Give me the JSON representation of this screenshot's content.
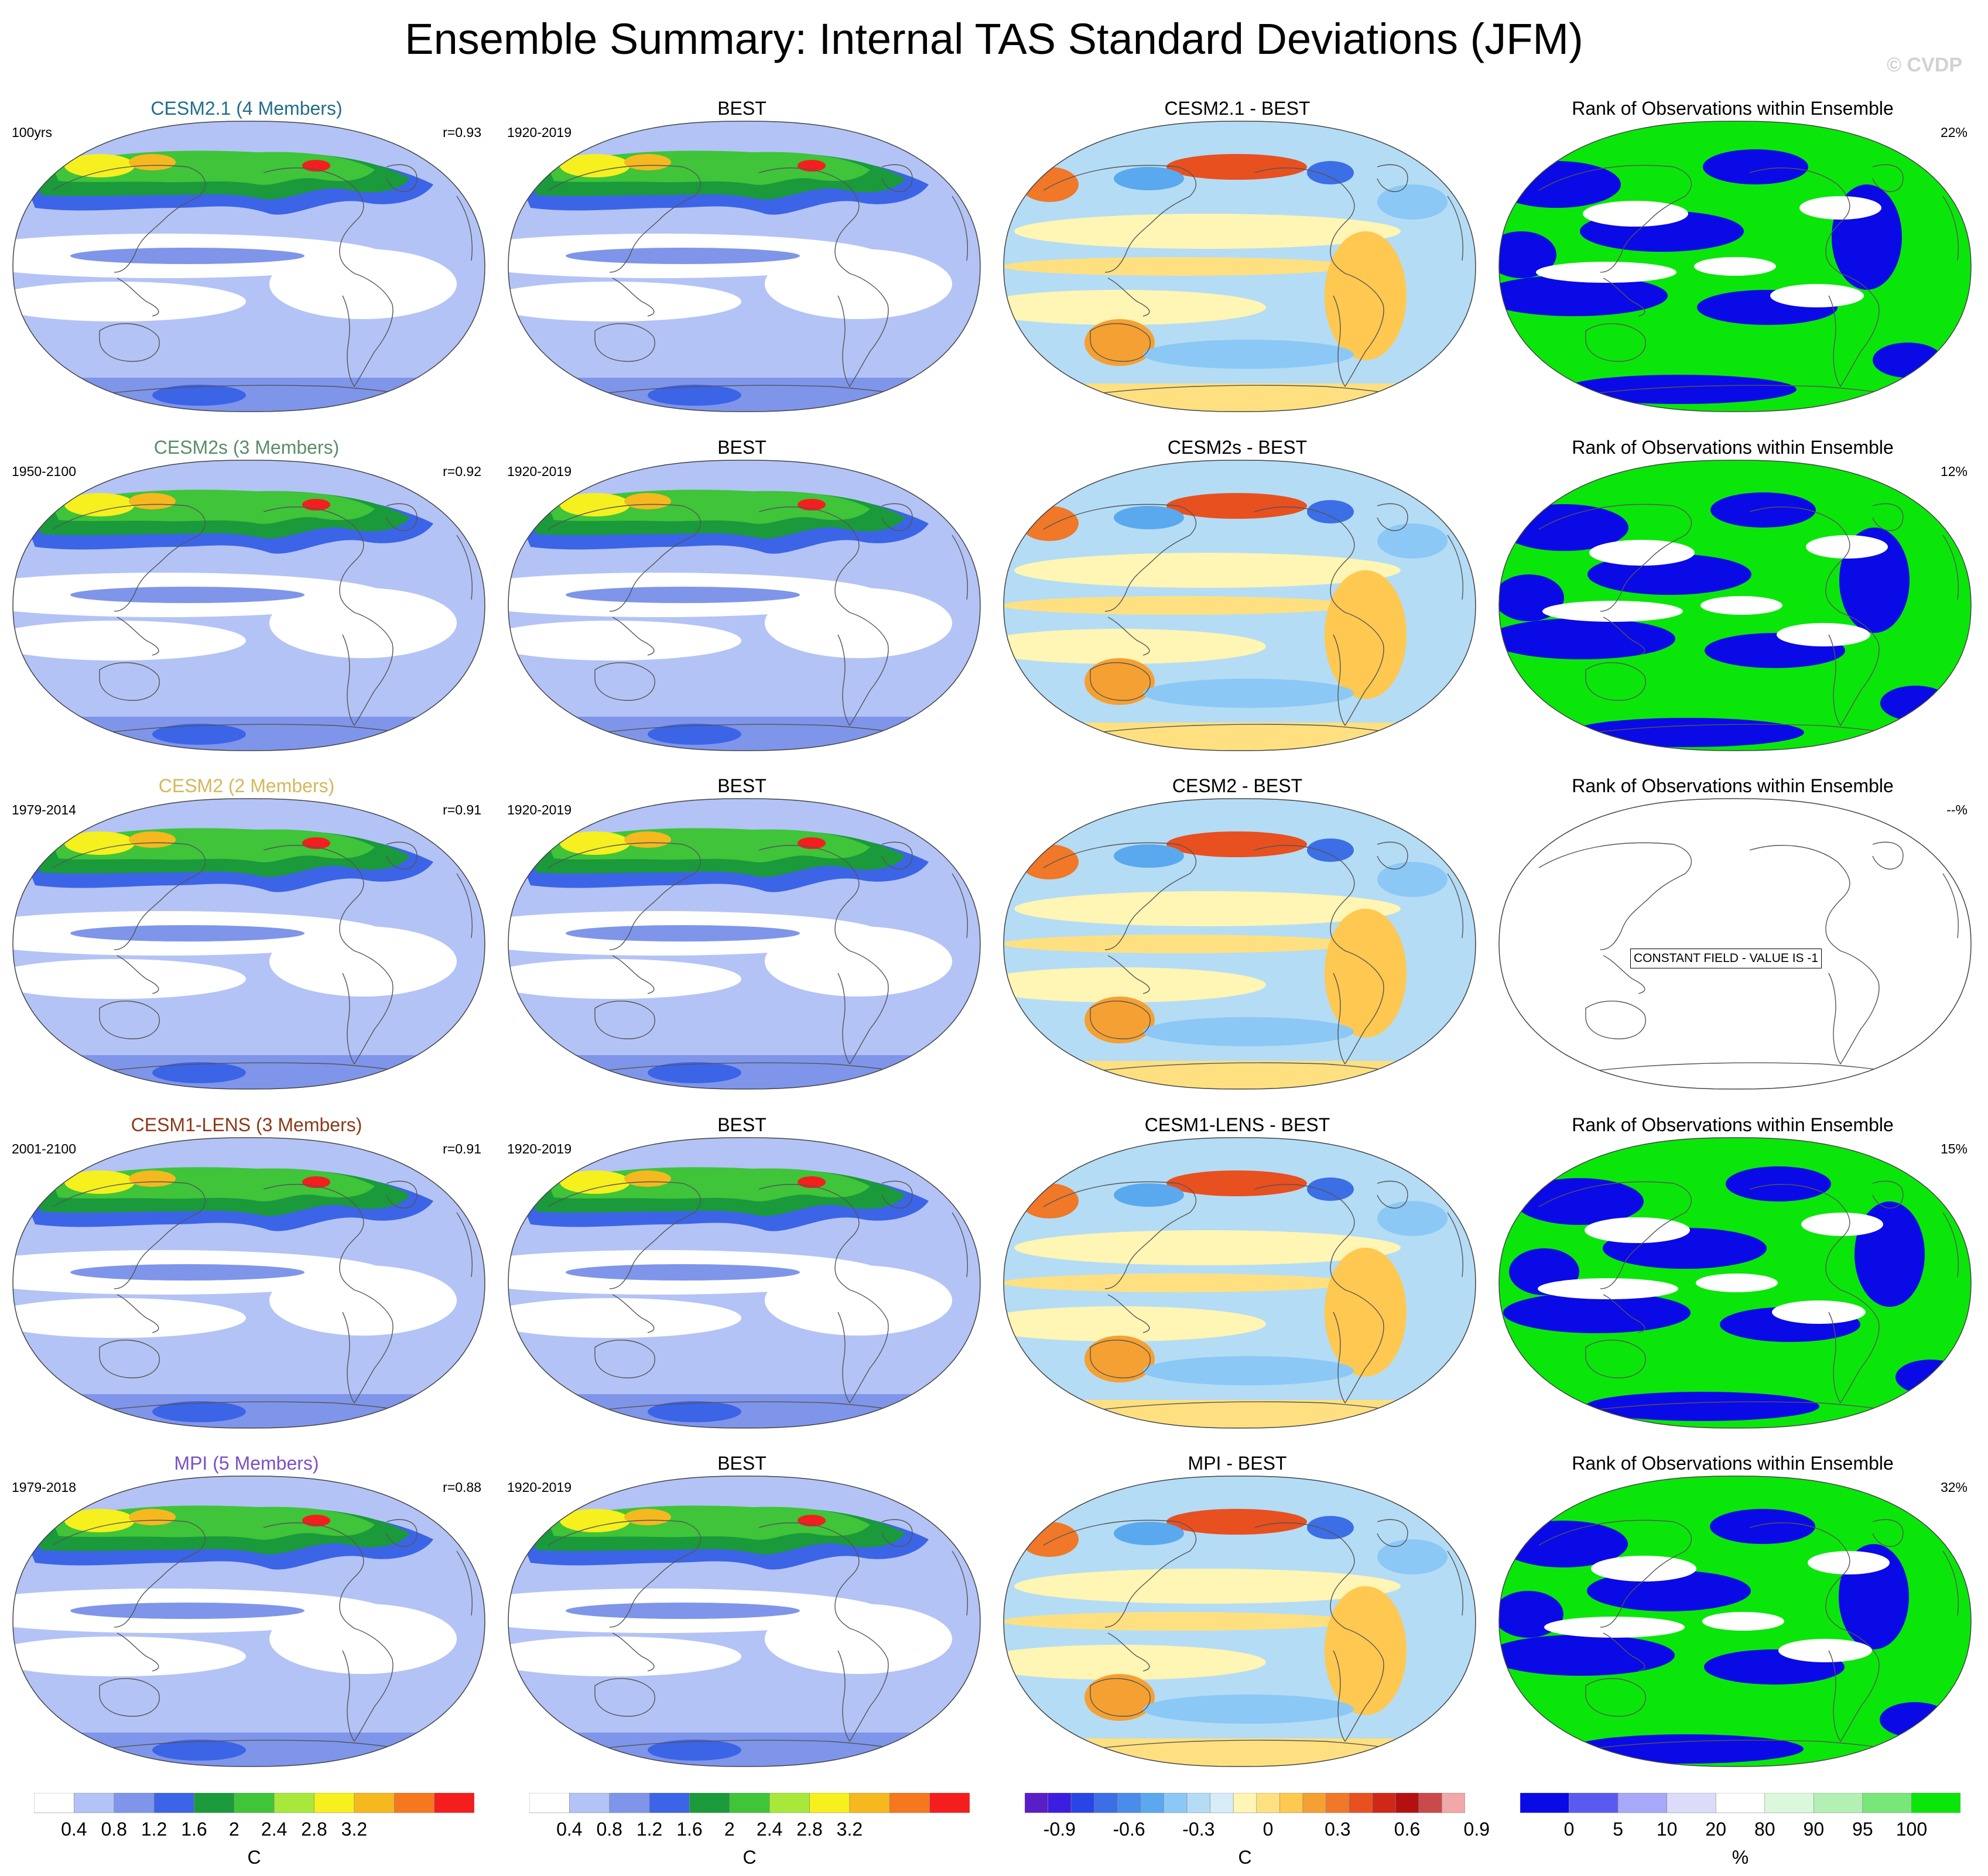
{
  "title": "Ensemble Summary: Internal TAS Standard Deviations (JFM)",
  "copyright": "© CVDP",
  "rows": [
    {
      "model": {
        "title": "CESM2.1 (4 Members)",
        "title_color": "#1f6e8c",
        "period": "100yrs",
        "pattern_corr": "r=0.93"
      },
      "obs": {
        "title": "BEST",
        "period": "1920-2019"
      },
      "diff": {
        "title": "CESM2.1 - BEST"
      },
      "rank": {
        "title": "Rank of Observations within Ensemble",
        "percent": "22%",
        "constant_field": null
      }
    },
    {
      "model": {
        "title": "CESM2s (3 Members)",
        "title_color": "#5b8c6a",
        "period": "1950-2100",
        "pattern_corr": "r=0.92"
      },
      "obs": {
        "title": "BEST",
        "period": "1920-2019"
      },
      "diff": {
        "title": "CESM2s - BEST"
      },
      "rank": {
        "title": "Rank of Observations within Ensemble",
        "percent": "12%",
        "constant_field": null
      }
    },
    {
      "model": {
        "title": "CESM2 (2 Members)",
        "title_color": "#d4b85a",
        "period": "1979-2014",
        "pattern_corr": "r=0.91"
      },
      "obs": {
        "title": "BEST",
        "period": "1920-2019"
      },
      "diff": {
        "title": "CESM2 - BEST"
      },
      "rank": {
        "title": "Rank of Observations within Ensemble",
        "percent": "--%",
        "constant_field": "CONSTANT FIELD - VALUE IS -1"
      }
    },
    {
      "model": {
        "title": "CESM1-LENS (3 Members)",
        "title_color": "#8b3a1a",
        "period": "2001-2100",
        "pattern_corr": "r=0.91"
      },
      "obs": {
        "title": "BEST",
        "period": "1920-2019"
      },
      "diff": {
        "title": "CESM1-LENS - BEST"
      },
      "rank": {
        "title": "Rank of Observations within Ensemble",
        "percent": "15%",
        "constant_field": null
      }
    },
    {
      "model": {
        "title": "MPI (5 Members)",
        "title_color": "#7b4fc9",
        "period": "1979-2018",
        "pattern_corr": "r=0.88"
      },
      "obs": {
        "title": "BEST",
        "period": "1920-2019"
      },
      "diff": {
        "title": "MPI - BEST"
      },
      "rank": {
        "title": "Rank of Observations within Ensemble",
        "percent": "32%",
        "constant_field": null
      }
    }
  ],
  "chart_data": [
    {
      "type": "heatmap",
      "description_of_axes": "global maps, Robinson-style projection",
      "colorbars": [
        {
          "id": "stddev",
          "unit": "C",
          "levels": [
            0.4,
            0.8,
            1.2,
            1.6,
            2,
            2.4,
            2.8,
            3.2
          ],
          "tick_labels": [
            "0.4",
            "0.8",
            "1.2",
            "1.6",
            "2",
            "2.4",
            "2.8",
            "3.2"
          ],
          "colors": [
            "#ffffff",
            "#b3c3f5",
            "#7f95ea",
            "#3c64e6",
            "#1a9a3a",
            "#3fc43a",
            "#a8e83a",
            "#f5f01e",
            "#f5b81e",
            "#f5781e",
            "#f51e1e"
          ]
        },
        {
          "id": "stddev_obs",
          "unit": "C",
          "levels": [
            0.4,
            0.8,
            1.2,
            1.6,
            2,
            2.4,
            2.8,
            3.2
          ],
          "tick_labels": [
            "0.4",
            "0.8",
            "1.2",
            "1.6",
            "2",
            "2.4",
            "2.8",
            "3.2"
          ],
          "colors": [
            "#ffffff",
            "#b3c3f5",
            "#7f95ea",
            "#3c64e6",
            "#1a9a3a",
            "#3fc43a",
            "#a8e83a",
            "#f5f01e",
            "#f5b81e",
            "#f5781e",
            "#f51e1e"
          ]
        },
        {
          "id": "difference",
          "unit": "C",
          "levels": [
            -0.9,
            -0.6,
            -0.3,
            0,
            0.3,
            0.6,
            0.9
          ],
          "tick_labels": [
            "-0.9",
            "-0.6",
            "-0.3",
            "0",
            "0.3",
            "0.6",
            "0.9"
          ],
          "colors": [
            "#5a1ec8",
            "#3c1ee0",
            "#2846e6",
            "#3c6ee6",
            "#4a8cea",
            "#5aa8ee",
            "#8cc8f5",
            "#b4dcf5",
            "#d8ecf8",
            "#fff5b4",
            "#ffe080",
            "#ffc850",
            "#f5a032",
            "#f07828",
            "#e85020",
            "#d02818",
            "#b41010",
            "#c84a4a",
            "#f0a8a8"
          ]
        },
        {
          "id": "rank",
          "unit": "%",
          "levels": [
            0,
            5,
            10,
            20,
            80,
            90,
            95,
            100
          ],
          "tick_labels": [
            "0",
            "5",
            "10",
            "20",
            "80",
            "90",
            "95",
            "100"
          ],
          "colors": [
            "#0a0ae6",
            "#5a5af0",
            "#a8a8f8",
            "#dcdcfa",
            "#ffffff",
            "#dcf8dc",
            "#b4f0b4",
            "#78e678",
            "#0ae60a"
          ]
        }
      ],
      "columns": [
        "model std dev",
        "obs std dev",
        "model - obs",
        "rank of obs"
      ]
    }
  ]
}
